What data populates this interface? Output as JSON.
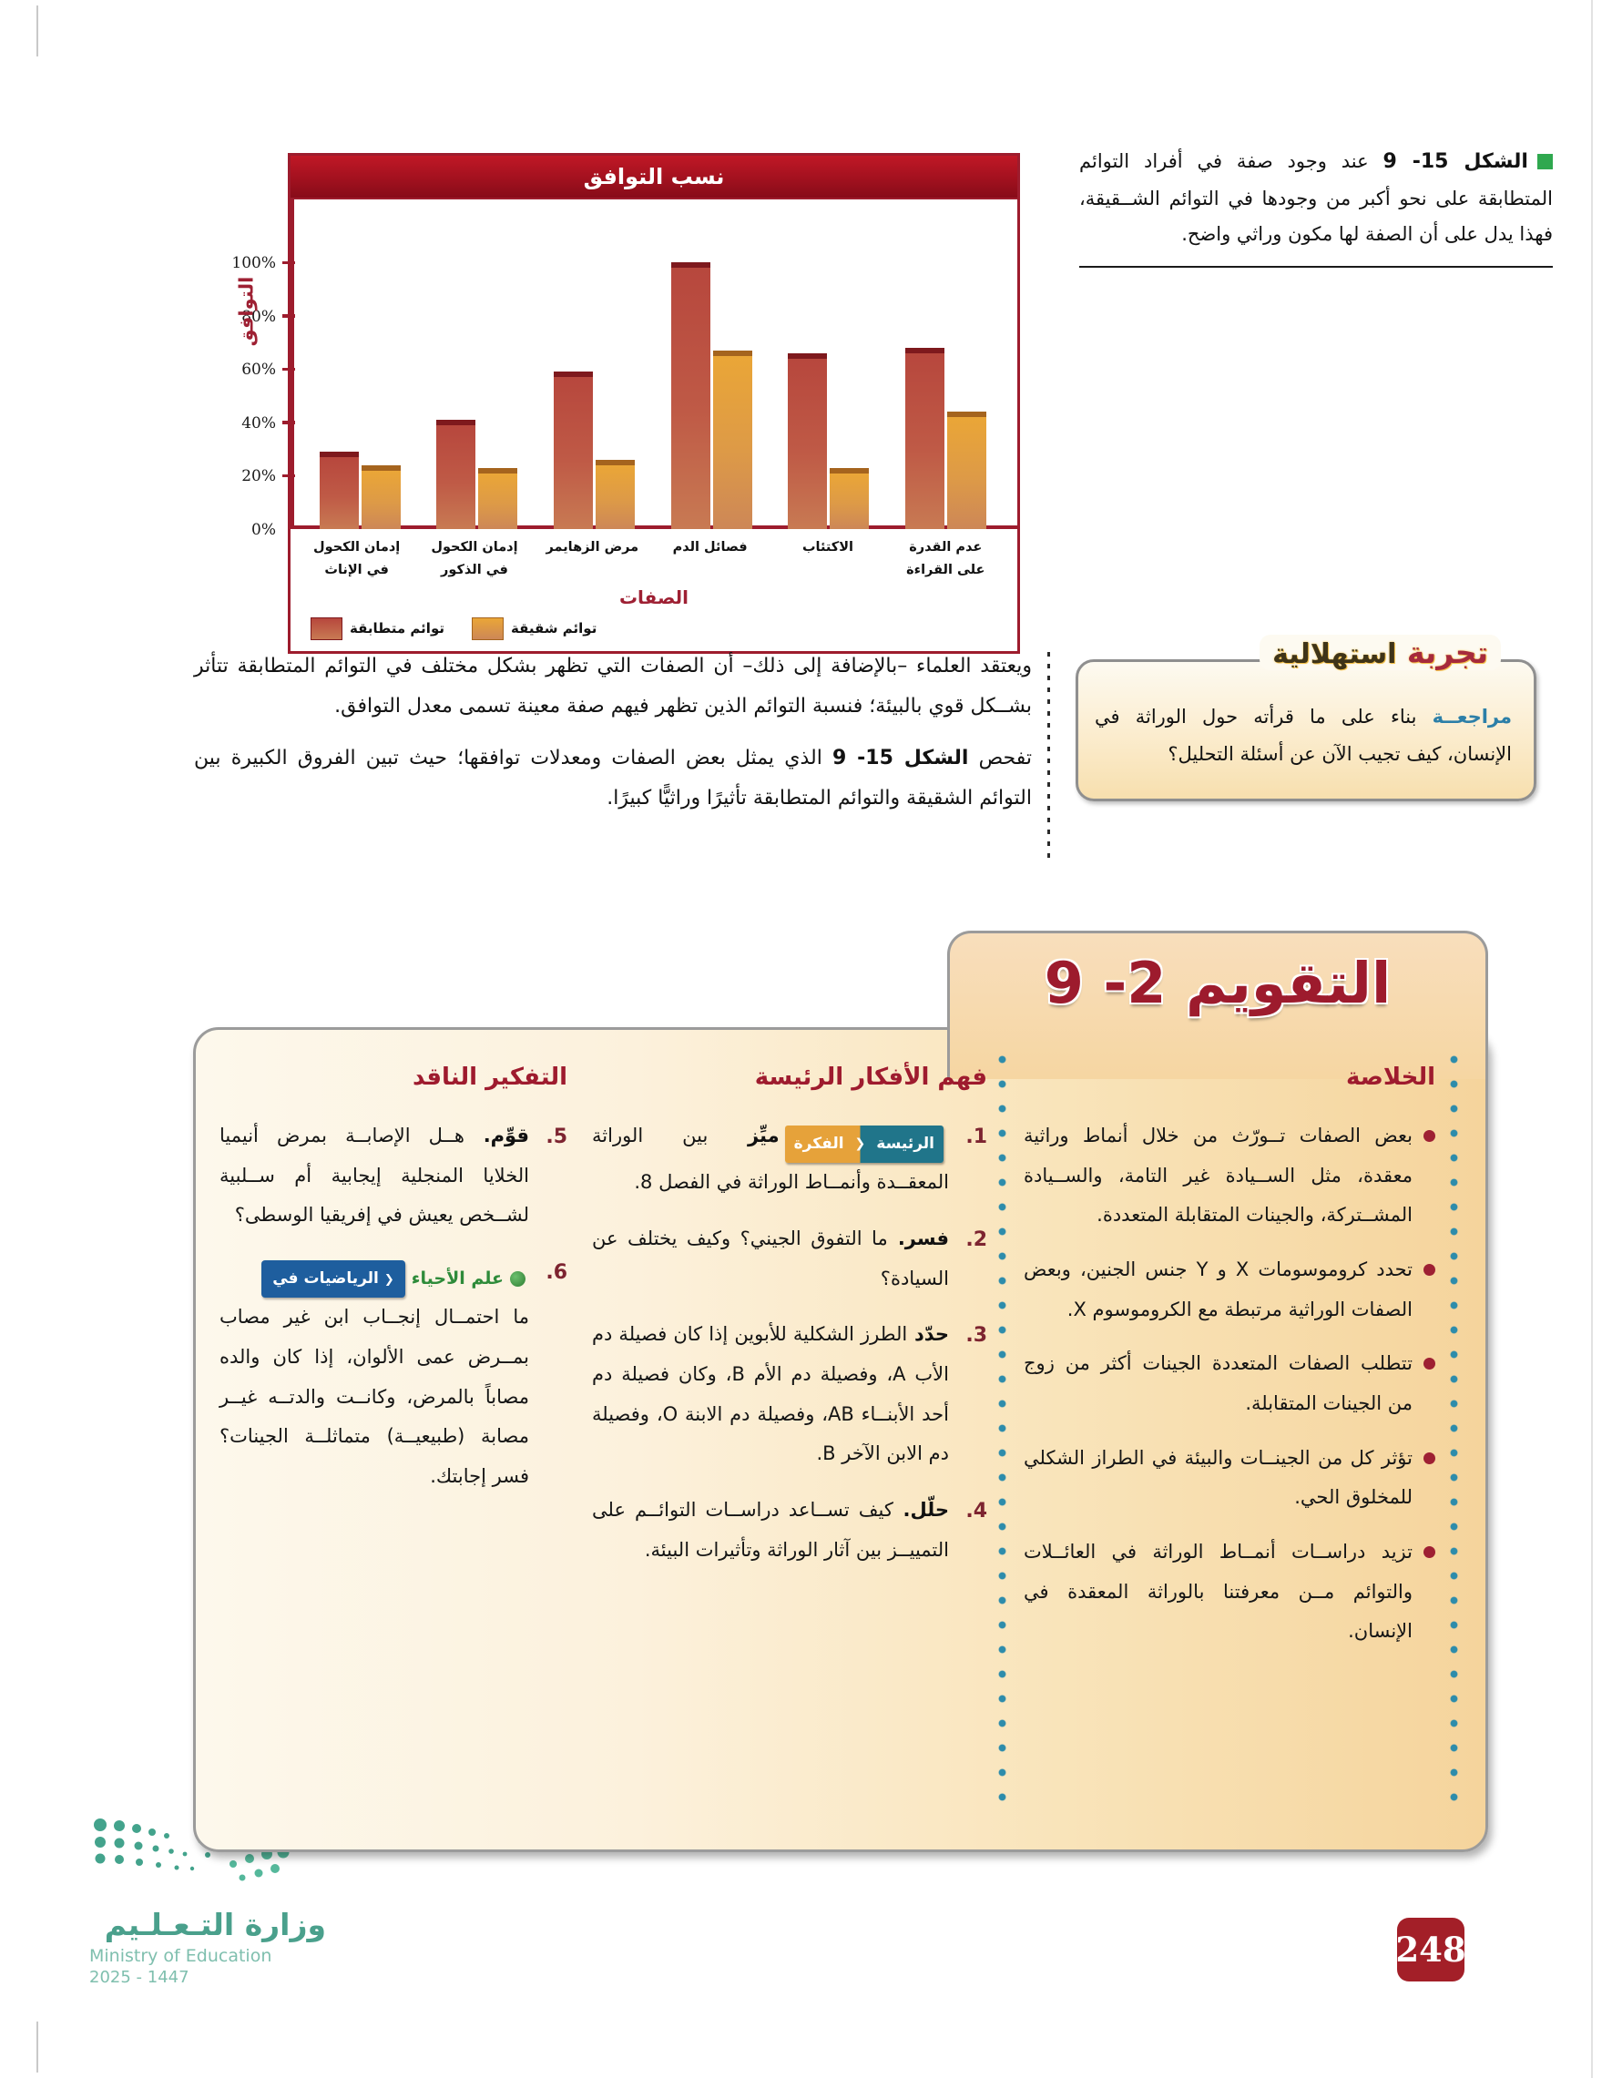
{
  "page": {
    "number": "248"
  },
  "figure": {
    "marker_color": "#2fa84f",
    "label": "الشكل 15- 9",
    "caption": "عند وجود صفة في أفراد التوائم المتطابقة على نحو أكبر من وجودها في التوائم الشــقيقة، فهذا يدل على أن الصفة لها مكون وراثي واضح."
  },
  "chart_data": {
    "type": "bar",
    "title": "نسب التوافق",
    "xlabel": "الصفات",
    "ylabel": "التوافق",
    "categories": [
      "إدمان الكحول في الإناث",
      "إدمان الكحول في الذكور",
      "مرض الزهايمر",
      "فصائل الدم",
      "الاكتئاب",
      "عدم القدرة على القراءة"
    ],
    "categories_lines": [
      [
        "إدمان الكحول",
        "في الإناث"
      ],
      [
        "إدمان الكحول",
        "في الذكور"
      ],
      [
        "مرض الزهايمر",
        ""
      ],
      [
        "فصائل الدم",
        ""
      ],
      [
        "الاكتئاب",
        ""
      ],
      [
        "عدم القدرة",
        "على القراءة"
      ]
    ],
    "series": [
      {
        "name": "توائم متطابقة",
        "color": "#bc4f43",
        "values": [
          29,
          41,
          59,
          100,
          66,
          68
        ]
      },
      {
        "name": "توائم شقيقة",
        "color": "#e5a33c",
        "values": [
          24,
          23,
          26,
          67,
          23,
          44
        ]
      }
    ],
    "yticks": [
      "0%",
      "20%",
      "40%",
      "60%",
      "80%",
      "100%"
    ],
    "ylim": [
      0,
      100
    ],
    "grid": false,
    "legend_position": "bottom-left"
  },
  "paragraphs": {
    "p1": "ويعتقد العلماء –بالإضافة إلى ذلك– أن الصفات التي تظهر بشكل مختلف في التوائم المتطابقة تتأثر بشــكل قوي بالبيئة؛ فنسبة التوائم الذين تظهر فيهم صفة معينة تسمى معدل التوافق.",
    "p2_prefix": "تفحص ",
    "p2_bold": "الشكل 15- 9",
    "p2_rest": " الذي يمثل بعض الصفات ومعدلات توافقها؛ حيث تبين الفروق الكبيرة بين التوائم الشقيقة والتوائم المتطابقة تأثيرًا وراثيًّا كبيرًا."
  },
  "launch_lab": {
    "title_a": "تجربة",
    "title_b": "استهلالية",
    "lead": "مراجعــة",
    "text": "بناء على ما قرأته حول الوراثة في الإنسان، كيف تجيب الآن عن أسئلة التحليل؟"
  },
  "assessment": {
    "title": "التقويم 2- 9",
    "summary": {
      "heading": "الخلاصة",
      "bullets": [
        "بعض الصفات تــورّث من خلال أنماط وراثية معقدة، مثل الســيادة غير التامة، والســيادة المشــتركة، والجينات المتقابلة المتعددة.",
        "تحدد كروموسومات X و Y جنس الجنين، وبعض الصفات الوراثية مرتبطة مع الكروموسوم X.",
        "تتطلب الصفات المتعددة الجينات أكثر من زوج من الجينات المتقابلة.",
        "تؤثر كل من الجينــات والبيئة في الطراز الشكلي للمخلوق الحي.",
        "تزيد دراســات أنمــاط الوراثة في العائــلات والتوائم مــن معرفتنا بالوراثة المعقدة في الإنسان."
      ]
    },
    "main_ideas": {
      "heading": "فهم الأفكار الرئيسة",
      "items": [
        {
          "num": "1.",
          "badge_idea": {
            "a": "الفكرة",
            "b": "الرئيسة"
          },
          "keyword": "ميِّز",
          "text": "بين الوراثة المعقــدة وأنمــاط الوراثة في الفصل 8."
        },
        {
          "num": "2.",
          "keyword": "فسر.",
          "text": "ما التفوق الجيني؟ وكيف يختلف عن السيادة؟"
        },
        {
          "num": "3.",
          "keyword": "حدّد",
          "text": "الطرز الشكلية للأبوين إذا كان فصيلة دم الأب A، وفصيلة دم الأم B، وكان فصيلة دم أحد الأبنــاء AB، وفصيلة دم الابنة O، وفصيلة دم الابن الآخر B."
        },
        {
          "num": "4.",
          "keyword": "حلّل.",
          "text": "كيف تســاعد دراســات التوائــم على التمييــز بين آثار الوراثة وتأثيرات البيئة."
        }
      ]
    },
    "critical": {
      "heading": "التفكير الناقد",
      "items": [
        {
          "num": "5.",
          "keyword": "قوِّم.",
          "text": "هــل الإصابــة بمرض أنيميا الخلايا المنجلية إيجابية أم ســلبية لشــخص يعيش في إفريقيا الوسطى؟"
        },
        {
          "num": "6.",
          "badge_math": {
            "math": "الرياضيات في",
            "bio": "علم الأحياء"
          },
          "text": "ما احتمــال إنجــاب ابن غير مصاب بمــرض عمى الألوان، إذا كان والده مصاباً بالمرض، وكانــت والدتــه غيــر مصابة (طبيعيــة) متماثلــة الجينات؟ فسر إجابتك."
        }
      ]
    }
  },
  "footer": {
    "ministry_ar": "وزارة التـعـلـيم",
    "ministry_en": "Ministry of Education",
    "years": "2025 - 1447"
  },
  "colors": {
    "accent_dark_red": "#9d1c2d",
    "panel_peach": "#f5d49c",
    "dot_blue": "#2d8cab",
    "figure_marker_green": "#2fa84f",
    "page_badge_red": "#a31f28",
    "ministry_green": "#4aa08c"
  }
}
